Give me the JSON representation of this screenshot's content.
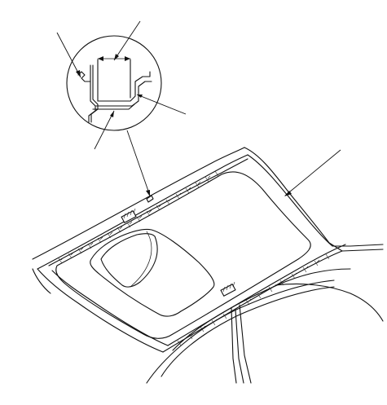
{
  "figure": {
    "subject": "roof-panel-with-sunroof",
    "callouts": [
      {
        "id": "detail-leader-1",
        "label": ""
      },
      {
        "id": "detail-leader-2",
        "label": ""
      },
      {
        "id": "detail-leader-3",
        "label": ""
      },
      {
        "id": "detail-leader-4",
        "label": ""
      },
      {
        "id": "roof-panel-leader",
        "label": ""
      }
    ],
    "colors": {
      "line": "#111111",
      "background": "#ffffff"
    }
  }
}
